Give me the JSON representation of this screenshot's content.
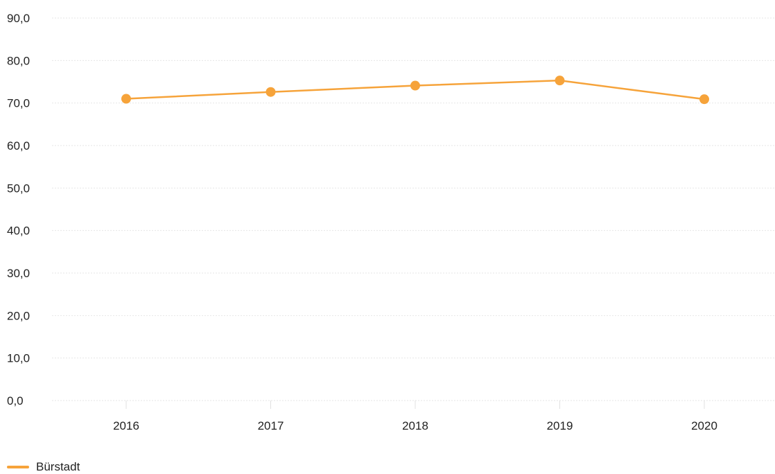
{
  "colors": {
    "series": "#f6a33a",
    "grid": "#e6e6e6",
    "text": "#222222"
  },
  "chart_data": {
    "type": "line",
    "title": "",
    "xlabel": "",
    "ylabel": "",
    "categories": [
      "2016",
      "2017",
      "2018",
      "2019",
      "2020"
    ],
    "y_tick_labels": [
      "0,0",
      "10,0",
      "20,0",
      "30,0",
      "40,0",
      "50,0",
      "60,0",
      "70,0",
      "80,0",
      "90,0"
    ],
    "ylim": [
      0,
      90
    ],
    "grid": true,
    "legend_position": "bottom-left",
    "series": [
      {
        "name": "Bürstadt",
        "values": [
          71.0,
          72.6,
          74.1,
          75.3,
          70.9
        ]
      }
    ]
  }
}
